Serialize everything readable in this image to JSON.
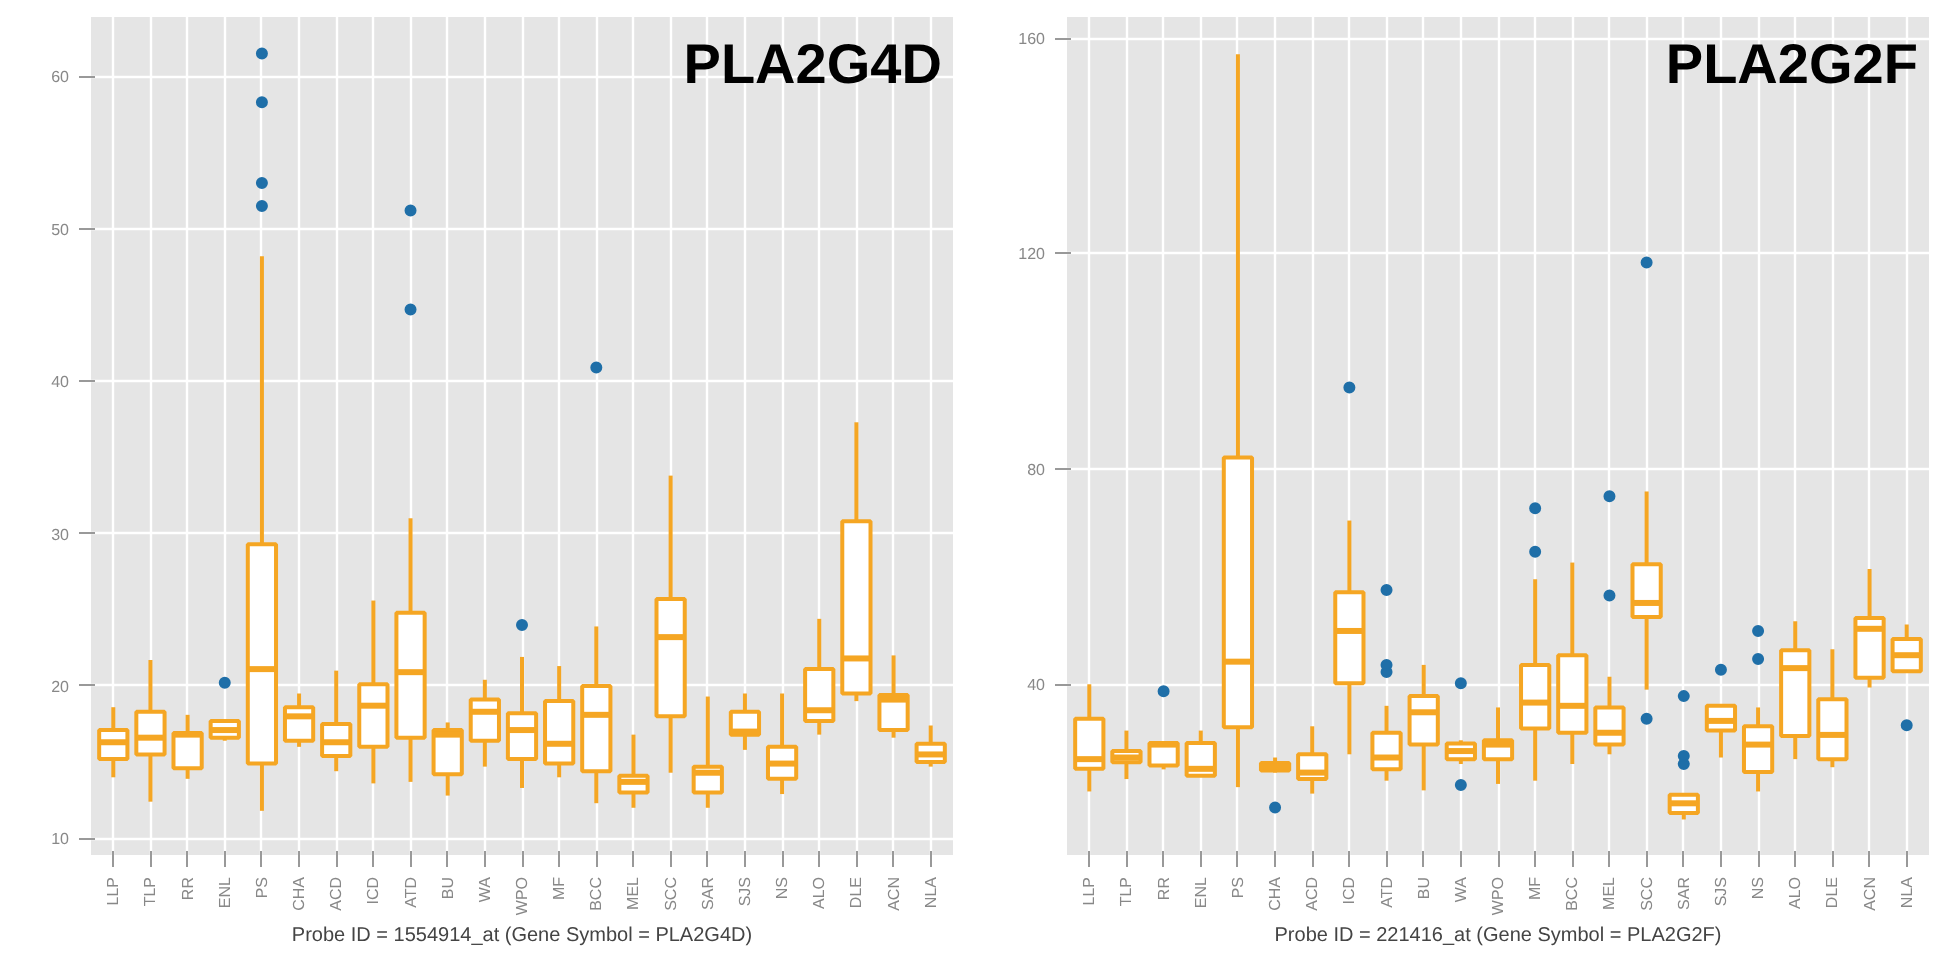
{
  "chart_data": [
    {
      "type": "box",
      "title": "PLA2G4D",
      "xlabel": "Probe ID = 1554914_at (Gene Symbol = PLA2G4D)",
      "categories": [
        "LLP",
        "TLP",
        "RR",
        "ENL",
        "PS",
        "CHA",
        "ACD",
        "ICD",
        "ATD",
        "BU",
        "WA",
        "WPO",
        "MF",
        "BCC",
        "MEL",
        "SCC",
        "SAR",
        "SJS",
        "NS",
        "ALO",
        "DLE",
        "ACN",
        "NLA"
      ],
      "color": "#f5a623",
      "ylim": [
        8.9,
        63.9
      ],
      "yticks": [
        10,
        20,
        30,
        40,
        50,
        60
      ],
      "grid": true,
      "boxes": [
        {
          "low": 14.0,
          "q1": 15.2,
          "median": 16.3,
          "q3": 17.1,
          "high": 18.6
        },
        {
          "low": 12.4,
          "q1": 15.5,
          "median": 16.6,
          "q3": 18.3,
          "high": 21.7
        },
        {
          "low": 13.9,
          "q1": 14.6,
          "median": 16.8,
          "q3": 16.9,
          "high": 18.1
        },
        {
          "low": 16.4,
          "q1": 16.6,
          "median": 17.1,
          "q3": 17.7,
          "high": 17.7,
          "outliers": [
            20.2
          ]
        },
        {
          "low": 11.8,
          "q1": 14.9,
          "median": 21.1,
          "q3": 29.3,
          "high": 48.2,
          "outliers": [
            51.5,
            53.0,
            58.3,
            61.5
          ]
        },
        {
          "low": 16.0,
          "q1": 16.4,
          "median": 18.0,
          "q3": 18.6,
          "high": 19.5
        },
        {
          "low": 14.4,
          "q1": 15.4,
          "median": 16.3,
          "q3": 17.5,
          "high": 21.0
        },
        {
          "low": 13.6,
          "q1": 16.0,
          "median": 18.7,
          "q3": 20.1,
          "high": 25.6
        },
        {
          "low": 13.7,
          "q1": 16.6,
          "median": 20.9,
          "q3": 24.8,
          "high": 31.0,
          "outliers": [
            44.7,
            51.2
          ]
        },
        {
          "low": 12.8,
          "q1": 14.2,
          "median": 16.8,
          "q3": 17.1,
          "high": 17.6
        },
        {
          "low": 14.7,
          "q1": 16.4,
          "median": 18.3,
          "q3": 19.1,
          "high": 20.4
        },
        {
          "low": 13.3,
          "q1": 15.2,
          "median": 17.1,
          "q3": 18.2,
          "high": 21.9,
          "outliers": [
            24.0
          ]
        },
        {
          "low": 14.0,
          "q1": 14.9,
          "median": 16.2,
          "q3": 19.0,
          "high": 21.3
        },
        {
          "low": 12.3,
          "q1": 14.4,
          "median": 18.1,
          "q3": 20.0,
          "high": 23.9,
          "outliers": [
            40.9
          ]
        },
        {
          "low": 12.0,
          "q1": 13.0,
          "median": 13.7,
          "q3": 14.1,
          "high": 16.8
        },
        {
          "low": 14.3,
          "q1": 18.0,
          "median": 23.2,
          "q3": 25.7,
          "high": 33.8
        },
        {
          "low": 12.0,
          "q1": 13.0,
          "median": 14.3,
          "q3": 14.7,
          "high": 19.3
        },
        {
          "low": 15.8,
          "q1": 16.8,
          "median": 17.0,
          "q3": 18.3,
          "high": 19.5
        },
        {
          "low": 12.9,
          "q1": 13.9,
          "median": 14.9,
          "q3": 16.0,
          "high": 19.5
        },
        {
          "low": 16.8,
          "q1": 17.7,
          "median": 18.4,
          "q3": 21.1,
          "high": 24.4
        },
        {
          "low": 19.0,
          "q1": 19.5,
          "median": 21.8,
          "q3": 30.8,
          "high": 37.3
        },
        {
          "low": 16.6,
          "q1": 17.1,
          "median": 19.1,
          "q3": 19.4,
          "high": 22.0
        },
        {
          "low": 14.7,
          "q1": 15.0,
          "median": 15.5,
          "q3": 16.2,
          "high": 17.4
        }
      ]
    },
    {
      "type": "box",
      "title": "PLA2G2F",
      "xlabel": "Probe ID = 221416_at (Gene Symbol = PLA2G2F)",
      "categories": [
        "LLP",
        "TLP",
        "RR",
        "ENL",
        "PS",
        "CHA",
        "ACD",
        "ICD",
        "ATD",
        "BU",
        "WA",
        "WPO",
        "MF",
        "BCC",
        "MEL",
        "SCC",
        "SAR",
        "SJS",
        "NS",
        "ALO",
        "DLE",
        "ACN",
        "NLA"
      ],
      "color": "#f5a623",
      "ylim": [
        8.3,
        163.9
      ],
      "yticks": [
        40,
        80,
        120,
        160
      ],
      "grid": true,
      "boxes": [
        {
          "low": 20.1,
          "q1": 24.3,
          "median": 26.1,
          "q3": 33.6,
          "high": 40.0
        },
        {
          "low": 22.4,
          "q1": 25.5,
          "median": 26.4,
          "q3": 27.6,
          "high": 31.4
        },
        {
          "low": 24.2,
          "q1": 24.9,
          "median": 28.8,
          "q3": 29.1,
          "high": 29.1,
          "outliers": [
            38.7
          ]
        },
        {
          "low": 22.8,
          "q1": 23.0,
          "median": 24.3,
          "q3": 29.1,
          "high": 31.4
        },
        {
          "low": 20.9,
          "q1": 32.0,
          "median": 44.2,
          "q3": 82.1,
          "high": 157.0
        },
        {
          "low": 23.6,
          "q1": 24.0,
          "median": 24.8,
          "q3": 25.4,
          "high": 26.4,
          "outliers": [
            17.1
          ]
        },
        {
          "low": 19.7,
          "q1": 22.4,
          "median": 23.6,
          "q3": 27.0,
          "high": 32.2
        },
        {
          "low": 27.0,
          "q1": 40.2,
          "median": 49.9,
          "q3": 57.1,
          "high": 70.4,
          "outliers": [
            95.1
          ]
        },
        {
          "low": 22.1,
          "q1": 24.2,
          "median": 26.4,
          "q3": 31.0,
          "high": 36.0,
          "outliers": [
            42.3,
            43.6,
            57.5
          ]
        },
        {
          "low": 20.3,
          "q1": 28.8,
          "median": 34.8,
          "q3": 37.8,
          "high": 43.6
        },
        {
          "low": 25.2,
          "q1": 26.1,
          "median": 27.6,
          "q3": 29.0,
          "high": 29.6,
          "outliers": [
            21.3,
            40.2
          ]
        },
        {
          "low": 21.5,
          "q1": 26.1,
          "median": 28.8,
          "q3": 29.6,
          "high": 35.7
        },
        {
          "low": 22.1,
          "q1": 31.8,
          "median": 36.6,
          "q3": 43.6,
          "high": 59.5,
          "outliers": [
            64.6,
            72.7
          ]
        },
        {
          "low": 25.2,
          "q1": 31.0,
          "median": 36.0,
          "q3": 45.4,
          "high": 62.6
        },
        {
          "low": 27.0,
          "q1": 28.8,
          "median": 31.0,
          "q3": 35.7,
          "high": 41.4,
          "outliers": [
            56.5,
            74.9
          ]
        },
        {
          "low": 39.0,
          "q1": 52.5,
          "median": 55.1,
          "q3": 62.3,
          "high": 75.8,
          "outliers": [
            33.6,
            118.3
          ]
        },
        {
          "low": 14.9,
          "q1": 16.1,
          "median": 17.9,
          "q3": 19.5,
          "high": 19.7,
          "outliers": [
            25.2,
            26.7,
            37.8
          ]
        },
        {
          "low": 26.4,
          "q1": 31.4,
          "median": 33.2,
          "q3": 36.0,
          "high": 36.0,
          "outliers": [
            42.7
          ]
        },
        {
          "low": 20.1,
          "q1": 23.7,
          "median": 28.8,
          "q3": 32.2,
          "high": 35.7,
          "outliers": [
            44.7,
            49.9
          ]
        },
        {
          "low": 26.1,
          "q1": 30.4,
          "median": 43.0,
          "q3": 46.3,
          "high": 51.7
        },
        {
          "low": 24.6,
          "q1": 26.1,
          "median": 30.6,
          "q3": 37.2,
          "high": 46.5
        },
        {
          "low": 39.4,
          "q1": 41.2,
          "median": 50.3,
          "q3": 52.3,
          "high": 61.4
        },
        {
          "low": 42.4,
          "q1": 42.4,
          "median": 45.4,
          "q3": 48.4,
          "high": 51.1,
          "outliers": [
            32.4
          ]
        }
      ]
    }
  ]
}
